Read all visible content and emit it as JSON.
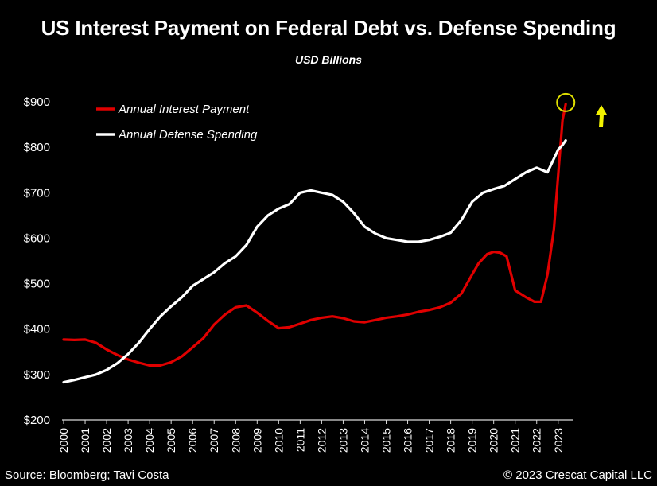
{
  "title": "US Interest Payment on Federal Debt vs. Defense Spending",
  "subtitle": "USD Billions",
  "source": "Source: Bloomberg; Tavi Costa",
  "copyright": "© 2023 Crescat Capital LLC",
  "chart_data": {
    "type": "line",
    "title": "US Interest Payment on Federal Debt vs. Defense Spending",
    "subtitle": "USD Billions",
    "ylim": [
      200,
      900
    ],
    "xlim": [
      2000,
      2023.6
    ],
    "y_ticks": [
      "$200",
      "$300",
      "$400",
      "$500",
      "$600",
      "$700",
      "$800",
      "$900"
    ],
    "y_tick_values": [
      200,
      300,
      400,
      500,
      600,
      700,
      800,
      900
    ],
    "x_ticks": [
      "2000",
      "2001",
      "2002",
      "2003",
      "2004",
      "2005",
      "2006",
      "2007",
      "2008",
      "2009",
      "2010",
      "2011",
      "2012",
      "2013",
      "2014",
      "2015",
      "2016",
      "2017",
      "2018",
      "2019",
      "2020",
      "2021",
      "2022",
      "2023"
    ],
    "legend_position": "top-left",
    "grid": false,
    "series": [
      {
        "name": "Annual Interest Payment",
        "color": "#e00000",
        "x": [
          2000.0,
          2000.5,
          2001.0,
          2001.5,
          2002.0,
          2002.5,
          2003.0,
          2003.5,
          2004.0,
          2004.5,
          2005.0,
          2005.5,
          2006.0,
          2006.5,
          2007.0,
          2007.5,
          2008.0,
          2008.5,
          2009.0,
          2009.5,
          2010.0,
          2010.5,
          2011.0,
          2011.5,
          2012.0,
          2012.5,
          2013.0,
          2013.5,
          2014.0,
          2014.5,
          2015.0,
          2015.5,
          2016.0,
          2016.5,
          2017.0,
          2017.5,
          2018.0,
          2018.5,
          2019.0,
          2019.3,
          2019.7,
          2020.0,
          2020.3,
          2020.6,
          2021.0,
          2021.5,
          2021.9,
          2022.2,
          2022.5,
          2022.8,
          2023.0,
          2023.2,
          2023.35
        ],
        "values": [
          377,
          376,
          377,
          370,
          355,
          343,
          333,
          326,
          320,
          320,
          327,
          340,
          360,
          380,
          410,
          432,
          448,
          452,
          436,
          418,
          402,
          404,
          412,
          420,
          425,
          428,
          424,
          417,
          415,
          420,
          425,
          428,
          432,
          438,
          442,
          448,
          458,
          478,
          520,
          545,
          565,
          570,
          568,
          560,
          485,
          470,
          460,
          460,
          520,
          620,
          740,
          860,
          895
        ]
      },
      {
        "name": "Annual Defense Spending",
        "color": "#ffffff",
        "x": [
          2000.0,
          2000.5,
          2001.0,
          2001.5,
          2002.0,
          2002.5,
          2003.0,
          2003.5,
          2004.0,
          2004.5,
          2005.0,
          2005.5,
          2006.0,
          2006.5,
          2007.0,
          2007.5,
          2008.0,
          2008.5,
          2009.0,
          2009.5,
          2010.0,
          2010.5,
          2011.0,
          2011.5,
          2012.0,
          2012.5,
          2013.0,
          2013.5,
          2014.0,
          2014.5,
          2015.0,
          2015.5,
          2016.0,
          2016.5,
          2017.0,
          2017.5,
          2018.0,
          2018.5,
          2019.0,
          2019.5,
          2020.0,
          2020.5,
          2021.0,
          2021.5,
          2022.0,
          2022.5,
          2022.8,
          2023.0,
          2023.2,
          2023.35
        ],
        "values": [
          283,
          288,
          294,
          300,
          310,
          325,
          345,
          370,
          400,
          428,
          450,
          470,
          495,
          510,
          525,
          545,
          560,
          585,
          625,
          650,
          665,
          675,
          700,
          705,
          700,
          695,
          680,
          655,
          625,
          610,
          600,
          596,
          592,
          592,
          596,
          603,
          612,
          640,
          680,
          700,
          708,
          715,
          730,
          745,
          755,
          745,
          775,
          795,
          805,
          815
        ]
      }
    ],
    "annotations": [
      {
        "type": "circle",
        "x": 2023.35,
        "y": 895,
        "color": "#e0e000"
      },
      {
        "type": "arrow-up",
        "color": "#f2f200"
      }
    ]
  }
}
